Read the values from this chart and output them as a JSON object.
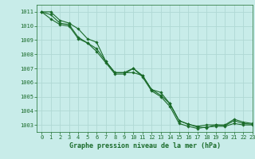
{
  "title": "Graphe pression niveau de la mer (hPa)",
  "background_color": "#c8ece9",
  "grid_color": "#b0d8d4",
  "line_color": "#1a6b2a",
  "marker_color": "#1a6b2a",
  "xlim": [
    -0.5,
    23
  ],
  "ylim": [
    1002.5,
    1011.5
  ],
  "xticks": [
    0,
    1,
    2,
    3,
    4,
    5,
    6,
    7,
    8,
    9,
    10,
    11,
    12,
    13,
    14,
    15,
    16,
    17,
    18,
    19,
    20,
    21,
    22,
    23
  ],
  "yticks": [
    1003,
    1004,
    1005,
    1006,
    1007,
    1008,
    1009,
    1010,
    1011
  ],
  "series": [
    [
      1011.0,
      1011.0,
      1010.4,
      1010.2,
      1009.8,
      1009.1,
      1008.85,
      1007.5,
      1006.7,
      1006.7,
      1006.7,
      1006.5,
      1005.5,
      1005.3,
      1004.5,
      1003.3,
      1003.05,
      1002.9,
      1003.0,
      1003.0,
      1003.0,
      1003.4,
      1003.2,
      1003.1
    ],
    [
      1011.0,
      1010.8,
      1010.2,
      1010.1,
      1009.2,
      1008.8,
      1008.4,
      1007.5,
      1006.7,
      1006.7,
      1007.0,
      1006.5,
      1005.5,
      1005.1,
      1004.5,
      1003.3,
      1003.05,
      1002.85,
      1002.8,
      1003.0,
      1002.95,
      1003.3,
      1003.1,
      1003.05
    ],
    [
      1011.0,
      1010.5,
      1010.1,
      1010.0,
      1009.1,
      1008.8,
      1008.2,
      1007.4,
      1006.6,
      1006.6,
      1007.0,
      1006.4,
      1005.4,
      1005.0,
      1004.3,
      1003.1,
      1002.9,
      1002.75,
      1002.85,
      1002.9,
      1002.9,
      1003.1,
      1003.0,
      1003.0
    ]
  ],
  "title_fontsize": 6.0,
  "tick_fontsize": 5.0,
  "xlabel_fontsize": 6.0
}
